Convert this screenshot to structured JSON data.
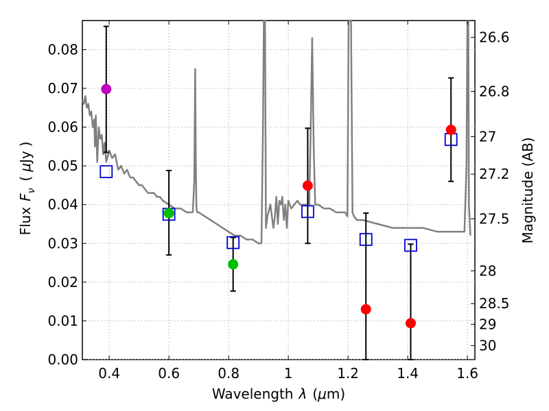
{
  "chart_data": {
    "type": "scatter",
    "title": "",
    "xlabel_parts": [
      "Wavelength",
      "λ",
      "(",
      "μ",
      "m)"
    ],
    "ylabel_parts": [
      "Flux",
      "F",
      "ν",
      "(",
      "μ",
      "Jy",
      ")"
    ],
    "y2label": "Magnitude (AB)",
    "xlim": [
      0.31,
      1.625
    ],
    "ylim": [
      0.0,
      0.0875
    ],
    "grid": true,
    "x_ticks": [
      {
        "value": 0.4,
        "label": "0.4"
      },
      {
        "value": 0.6,
        "label": "0.6"
      },
      {
        "value": 0.8,
        "label": "0.8"
      },
      {
        "value": 1.0,
        "label": "1"
      },
      {
        "value": 1.2,
        "label": "1.2"
      },
      {
        "value": 1.4,
        "label": "1.4"
      },
      {
        "value": 1.6,
        "label": "1.6"
      }
    ],
    "y_ticks": [
      {
        "value": 0.0,
        "label": "0.00"
      },
      {
        "value": 0.01,
        "label": "0.01"
      },
      {
        "value": 0.02,
        "label": "0.02"
      },
      {
        "value": 0.03,
        "label": "0.03"
      },
      {
        "value": 0.04,
        "label": "0.04"
      },
      {
        "value": 0.05,
        "label": "0.05"
      },
      {
        "value": 0.06,
        "label": "0.06"
      },
      {
        "value": 0.07,
        "label": "0.07"
      },
      {
        "value": 0.08,
        "label": "0.08"
      }
    ],
    "y2_ticks": [
      {
        "value": 26.6,
        "label": "26.6"
      },
      {
        "value": 26.8,
        "label": "26.8"
      },
      {
        "value": 27.0,
        "label": "27"
      },
      {
        "value": 27.2,
        "label": "27.2"
      },
      {
        "value": 27.5,
        "label": "27.5"
      },
      {
        "value": 28.0,
        "label": "28"
      },
      {
        "value": 28.5,
        "label": "28.5"
      },
      {
        "value": 29.0,
        "label": "29"
      },
      {
        "value": 30.0,
        "label": "30"
      }
    ],
    "colors": {
      "model": "#808080",
      "magenta": "#bf00bf",
      "green": "#00bf00",
      "red": "#ff0000",
      "square": "#0000cc",
      "errorbar": "#000000",
      "grid": "#b0b0b0"
    },
    "model_spectrum": {
      "name": "model SED",
      "x": [
        0.31,
        0.315,
        0.32,
        0.325,
        0.33,
        0.335,
        0.34,
        0.345,
        0.35,
        0.352,
        0.355,
        0.36,
        0.365,
        0.37,
        0.375,
        0.38,
        0.385,
        0.39,
        0.4,
        0.41,
        0.42,
        0.43,
        0.44,
        0.45,
        0.46,
        0.47,
        0.48,
        0.49,
        0.5,
        0.51,
        0.52,
        0.53,
        0.54,
        0.55,
        0.56,
        0.57,
        0.58,
        0.6,
        0.62,
        0.64,
        0.66,
        0.68,
        0.685,
        0.688,
        0.69,
        0.692,
        0.695,
        0.7,
        0.72,
        0.74,
        0.76,
        0.78,
        0.8,
        0.82,
        0.84,
        0.86,
        0.88,
        0.9,
        0.91,
        0.915,
        0.918,
        0.92,
        0.922,
        0.925,
        0.93,
        0.94,
        0.95,
        0.955,
        0.96,
        0.965,
        0.97,
        0.975,
        0.98,
        0.985,
        0.99,
        0.995,
        1.0,
        1.005,
        1.01,
        1.02,
        1.03,
        1.04,
        1.05,
        1.06,
        1.07,
        1.075,
        1.08,
        1.085,
        1.09,
        1.1,
        1.12,
        1.14,
        1.16,
        1.18,
        1.19,
        1.198,
        1.2,
        1.202,
        1.205,
        1.21,
        1.215,
        1.22,
        1.23,
        1.25,
        1.3,
        1.35,
        1.4,
        1.45,
        1.5,
        1.55,
        1.59,
        1.597,
        1.6,
        1.603,
        1.605,
        1.61
      ],
      "y": [
        0.067,
        0.066,
        0.068,
        0.065,
        0.066,
        0.063,
        0.064,
        0.06,
        0.062,
        0.055,
        0.063,
        0.051,
        0.06,
        0.057,
        0.058,
        0.053,
        0.056,
        0.051,
        0.054,
        0.052,
        0.053,
        0.049,
        0.05,
        0.048,
        0.049,
        0.047,
        0.047,
        0.046,
        0.045,
        0.045,
        0.044,
        0.043,
        0.043,
        0.043,
        0.042,
        0.042,
        0.041,
        0.04,
        0.039,
        0.039,
        0.038,
        0.038,
        0.046,
        0.075,
        0.052,
        0.039,
        0.038,
        0.038,
        0.037,
        0.036,
        0.035,
        0.034,
        0.033,
        0.032,
        0.032,
        0.031,
        0.031,
        0.03,
        0.03,
        0.06,
        0.0875,
        0.0875,
        0.0875,
        0.034,
        0.037,
        0.04,
        0.034,
        0.037,
        0.042,
        0.035,
        0.041,
        0.04,
        0.042,
        0.036,
        0.04,
        0.034,
        0.041,
        0.04,
        0.039,
        0.04,
        0.041,
        0.04,
        0.04,
        0.04,
        0.04,
        0.06,
        0.083,
        0.055,
        0.04,
        0.04,
        0.039,
        0.039,
        0.038,
        0.038,
        0.038,
        0.037,
        0.06,
        0.0875,
        0.0875,
        0.0875,
        0.038,
        0.037,
        0.036,
        0.036,
        0.035,
        0.034,
        0.034,
        0.034,
        0.033,
        0.033,
        0.033,
        0.05,
        0.0875,
        0.0875,
        0.04,
        0.032
      ]
    },
    "model_points": {
      "name": "model photometry",
      "marker": "open-square",
      "x": [
        0.39,
        0.6,
        0.815,
        1.065,
        1.26,
        1.41,
        1.545
      ],
      "y": [
        0.0485,
        0.0375,
        0.0302,
        0.0382,
        0.031,
        0.0295,
        0.0568
      ]
    },
    "observed_points": {
      "name": "observed photometry",
      "marker": "filled-circle",
      "points": [
        {
          "x": 0.39,
          "y": 0.0698,
          "err_low": 0.0535,
          "err_high": 0.086,
          "color": "#bf00bf"
        },
        {
          "x": 0.6,
          "y": 0.0378,
          "err_low": 0.027,
          "err_high": 0.0488,
          "color": "#00bf00"
        },
        {
          "x": 0.815,
          "y": 0.0246,
          "err_low": 0.0177,
          "err_high": 0.0315,
          "color": "#00bf00"
        },
        {
          "x": 1.065,
          "y": 0.0449,
          "err_low": 0.03,
          "err_high": 0.0597,
          "color": "#ff0000"
        },
        {
          "x": 1.26,
          "y": 0.013,
          "err_low": 0.0,
          "err_high": 0.0378,
          "color": "#ff0000"
        },
        {
          "x": 1.41,
          "y": 0.0094,
          "err_low": 0.0,
          "err_high": 0.0298,
          "color": "#ff0000"
        },
        {
          "x": 1.545,
          "y": 0.0593,
          "err_low": 0.046,
          "err_high": 0.0727,
          "color": "#ff0000"
        }
      ]
    }
  }
}
